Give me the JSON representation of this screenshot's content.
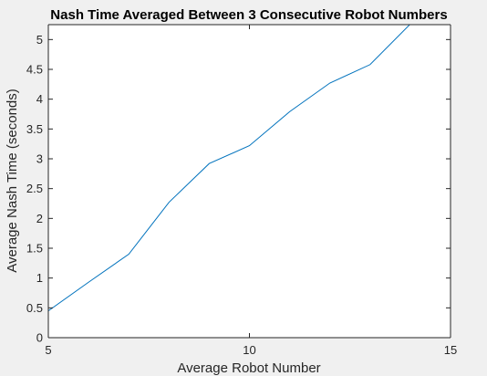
{
  "chart_data": {
    "type": "line",
    "title": "Nash Time Averaged Between 3 Consecutive Robot Numbers",
    "xlabel": "Average Robot Number",
    "ylabel": "Average Nash Time (seconds)",
    "xlim": [
      5,
      15
    ],
    "ylim": [
      0,
      5.25
    ],
    "xticks": [
      5,
      10,
      15
    ],
    "yticks": [
      0,
      0.5,
      1,
      1.5,
      2,
      2.5,
      3,
      3.5,
      4,
      4.5,
      5
    ],
    "grid": false,
    "series": [
      {
        "color": "#0072bd",
        "x": [
          5,
          6,
          7,
          8,
          9,
          10,
          11,
          12,
          13,
          14
        ],
        "y": [
          0.45,
          0.93,
          1.4,
          2.27,
          2.92,
          3.22,
          3.79,
          4.27,
          4.58,
          5.26
        ]
      }
    ]
  }
}
